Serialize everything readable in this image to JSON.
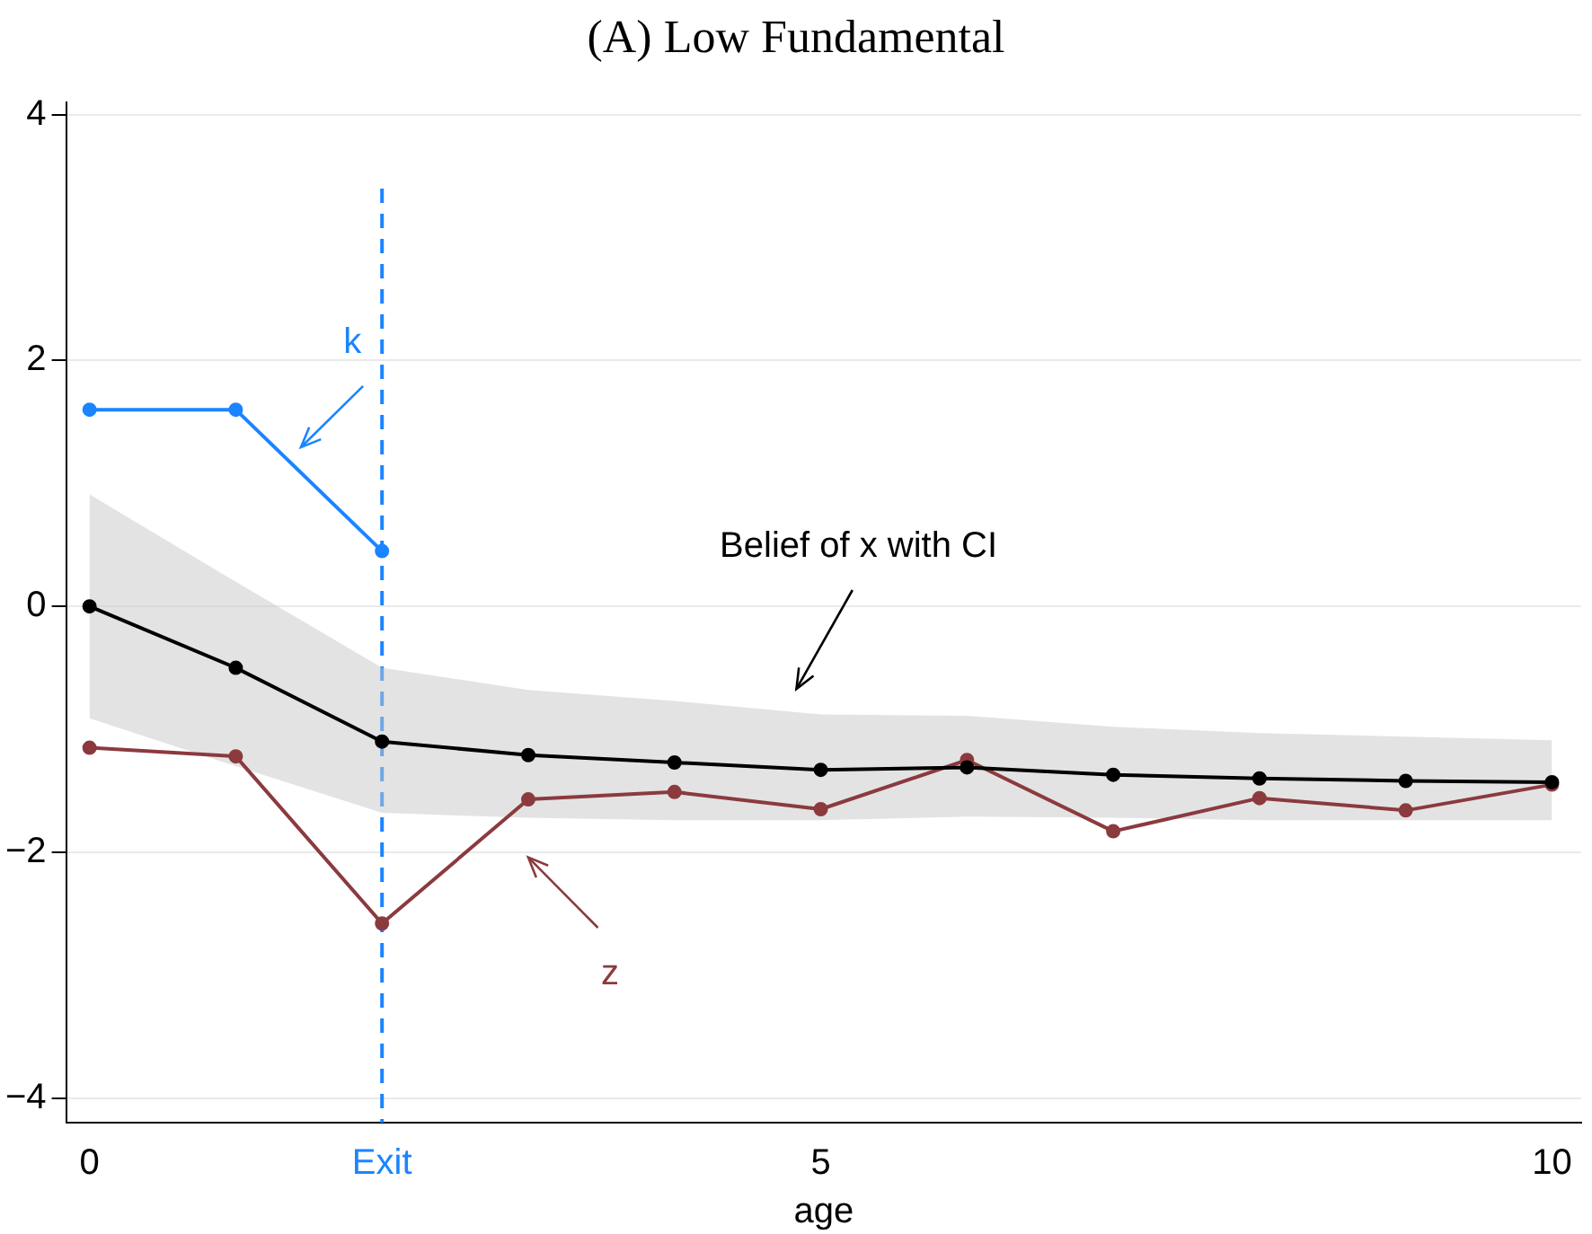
{
  "chart_data": {
    "type": "line",
    "title": "(A) Low Fundamental",
    "xlabel": "age",
    "xlim": [
      -0.16,
      10.2
    ],
    "xticks": [
      0,
      {
        "value": 2,
        "label": "Exit"
      },
      5,
      10
    ],
    "ylim": [
      -4.2,
      4.1
    ],
    "yticks": [
      {
        "value": -4,
        "label": "−4"
      },
      {
        "value": -2,
        "label": "−2"
      },
      0,
      2,
      4
    ],
    "grid": "y",
    "legend": false,
    "marker": "circle",
    "line_style": "solid",
    "series": [
      {
        "color": "#1a85ff",
        "x": [
          0,
          1,
          2
        ],
        "values": [
          1.6,
          1.6,
          0.45
        ]
      },
      {
        "color": "#000000",
        "x": [
          0,
          1,
          2,
          3,
          4,
          5,
          6,
          7,
          8,
          9,
          10
        ],
        "values": [
          0,
          -0.5,
          -1.1,
          -1.21,
          -1.27,
          -1.33,
          -1.31,
          -1.37,
          -1.4,
          -1.42,
          -1.43
        ],
        "lower": [
          -0.91,
          -1.3,
          -1.68,
          -1.72,
          -1.74,
          -1.74,
          -1.71,
          -1.72,
          -1.74,
          -1.74,
          -1.74
        ],
        "upper": [
          0.91,
          0.2,
          -0.5,
          -0.68,
          -0.77,
          -0.88,
          -0.89,
          -0.98,
          -1.03,
          -1.06,
          -1.09
        ]
      },
      {
        "color": "#8b3a3e",
        "x": [
          0,
          1,
          2,
          3,
          4,
          5,
          6,
          7,
          8,
          9,
          10
        ],
        "values": [
          -1.15,
          -1.22,
          -2.58,
          -1.57,
          -1.51,
          -1.65,
          -1.25,
          -1.83,
          -1.56,
          -1.66,
          -1.45
        ]
      }
    ],
    "ref_lines": [
      {
        "axis": "x",
        "value": 2,
        "color": "#1a85ff",
        "line_style": "dashed"
      }
    ],
    "annotations": [
      "k",
      "Belief of x with CI",
      "z"
    ]
  }
}
